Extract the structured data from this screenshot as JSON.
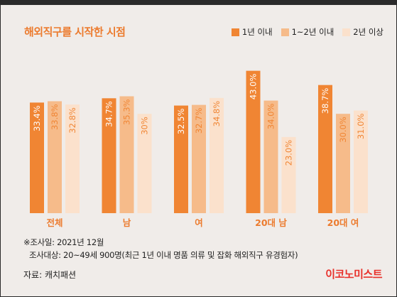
{
  "title": "해외직구를 시작한 시점",
  "colors": {
    "s1": "#f08533",
    "s2": "#f6bb8a",
    "s3": "#fbe1cc",
    "accent": "#ec7b2e",
    "brand": "#e8302a"
  },
  "chart_data": {
    "type": "bar",
    "title": "해외직구를 시작한 시점",
    "categories": [
      "전체",
      "남",
      "여",
      "20대 남",
      "20대 여"
    ],
    "series": [
      {
        "name": "1년 이내",
        "values": [
          33.4,
          34.7,
          32.5,
          43.0,
          38.7
        ],
        "labels": [
          "33.4%",
          "34.7%",
          "32.5%",
          "43.0%",
          "38.7%"
        ]
      },
      {
        "name": "1~2년 이내",
        "values": [
          33.8,
          35.3,
          32.7,
          34.0,
          30.0
        ],
        "labels": [
          "33.8%",
          "35.3%",
          "32.7%",
          "34.0%",
          "30.0%"
        ]
      },
      {
        "name": "2년 이상",
        "values": [
          32.8,
          30,
          34.8,
          23.0,
          31.0
        ],
        "labels": [
          "32.8%",
          "30%",
          "34.8%",
          "23.0%",
          "31.0%"
        ]
      }
    ],
    "ylim": [
      0,
      50
    ],
    "grid": false,
    "legend_position": "top-right"
  },
  "footnote": {
    "line1": "※조사일: 2021년 12월",
    "line2": "조사대상: 20~49세 900명(최근 1년 이내 명품 의류 및 잡화 해외직구 유경험자)"
  },
  "source": "자료: 캐치패션",
  "brand": "이코노미스트"
}
